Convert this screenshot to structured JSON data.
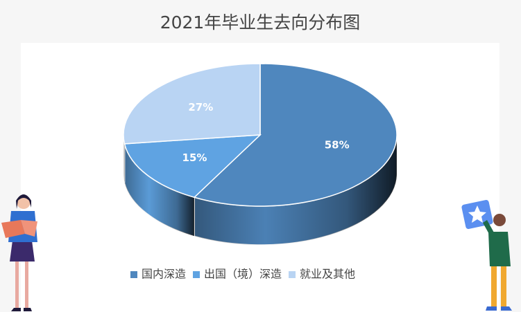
{
  "chart_data": {
    "type": "pie3d",
    "title": "2021年毕业生去向分布图",
    "categories": [
      "国内深造",
      "出国（境）深造",
      "就业及其他"
    ],
    "values": [
      58,
      15,
      27
    ],
    "value_labels": [
      "58%",
      "15%",
      "27%"
    ],
    "colors": [
      "#4f87be",
      "#5fa3e2",
      "#b9d4f3"
    ],
    "legend": "bottom"
  }
}
